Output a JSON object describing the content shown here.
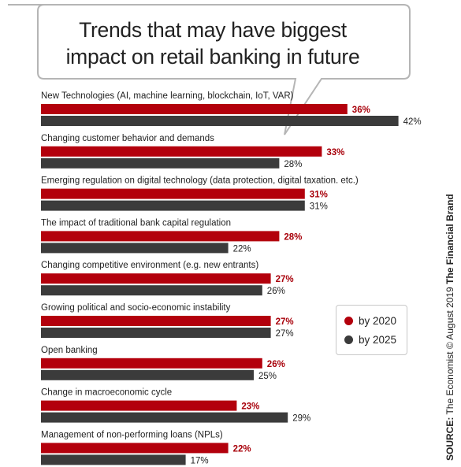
{
  "title_lines": [
    "Trends that may have biggest",
    "impact on retail banking in future"
  ],
  "legend": {
    "series_2020": "by 2020",
    "series_2025": "by 2025"
  },
  "source": {
    "label": "SOURCE:",
    "text": " The Economist © August 2019 ",
    "brand": "The Financial Brand"
  },
  "colors": {
    "series_2020": "#b3000c",
    "series_2025": "#3b3b3b",
    "label_2020": "#a8000a",
    "label_2025": "#222222",
    "bubble_border": "#b5b5b5"
  },
  "chart_data": {
    "type": "bar",
    "orientation": "horizontal",
    "categories": [
      "New Technologies (AI, machine learning, blockchain, IoT, VAR)",
      "Changing customer behavior and demands",
      "Emerging regulation on digital technology (data protection, digital taxation. etc.)",
      "The impact of traditional bank capital regulation",
      "Changing competitive environment (e.g. new entrants)",
      "Growing political and socio-economic instability",
      "Open banking",
      "Change in macroeconomic cycle",
      "Management of non-performing loans (NPLs)"
    ],
    "series": [
      {
        "name": "by 2020",
        "values": [
          36,
          33,
          31,
          28,
          27,
          27,
          26,
          23,
          22
        ]
      },
      {
        "name": "by 2025",
        "values": [
          42,
          28,
          31,
          22,
          26,
          27,
          25,
          29,
          17
        ]
      }
    ],
    "value_suffix": "%",
    "xlim": [
      0,
      42
    ],
    "legend_position": "right",
    "grid": false
  }
}
